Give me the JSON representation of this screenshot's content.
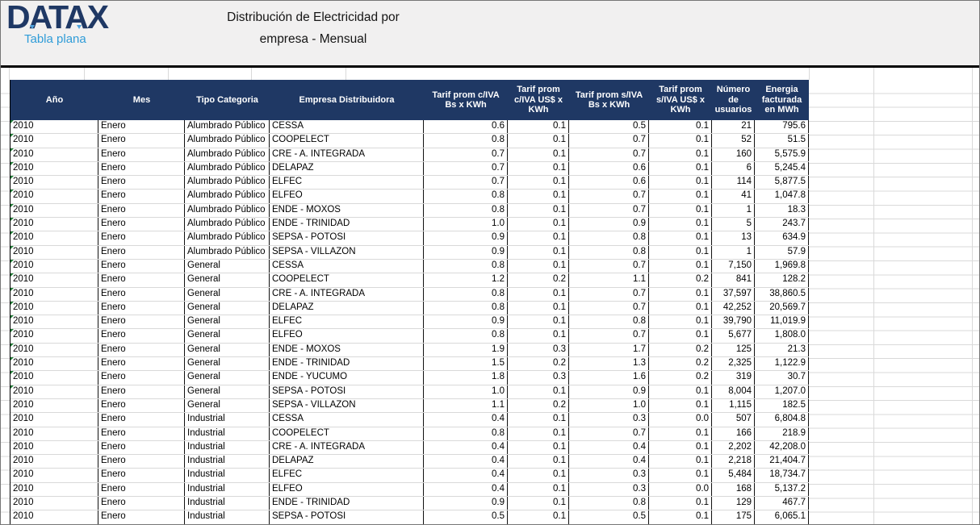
{
  "brand": {
    "logo_text": "DATAX",
    "tagline": "Tabla plana"
  },
  "title": {
    "line1": "Distribución de Electricidad por",
    "line2": "empresa - Mensual"
  },
  "colors": {
    "header_bg": "#1f3864",
    "header_text": "#ffffff",
    "logo_navy": "#1f3864",
    "tagline_blue": "#2f9cd8",
    "band_bg": "#f1f0f0",
    "gridline_gray": "#d9d9d9",
    "cell_border": "#000000",
    "error_indicator_green": "#1e7b34"
  },
  "table": {
    "columns": [
      {
        "id": "ano",
        "label": "Año"
      },
      {
        "id": "mes",
        "label": "Mes"
      },
      {
        "id": "tipo-categoria",
        "label": "Tipo Categoria"
      },
      {
        "id": "empresa-distribuidora",
        "label": "Empresa Distribuidora"
      },
      {
        "id": "tarif-prom-civa-bs",
        "label": "Tarif prom c/IVA Bs x KWh"
      },
      {
        "id": "tarif-prom-civa-usd",
        "label": "Tarif prom c/IVA US$ x KWh"
      },
      {
        "id": "tarif-prom-siva-bs",
        "label": "Tarif prom s/IVA Bs x KWh"
      },
      {
        "id": "tarif-prom-siva-usd",
        "label": "Tarif prom s/IVA US$ x KWh"
      },
      {
        "id": "numero-usuarios",
        "label": "Número de usuarios"
      },
      {
        "id": "energia-facturada",
        "label": "Energia facturada en MWh"
      }
    ],
    "rows": [
      {
        "error_indicator": true,
        "cells": [
          "2010",
          "Enero",
          "Alumbrado Público",
          "CESSA",
          "0.6",
          "0.1",
          "0.5",
          "0.1",
          "21",
          "795.6"
        ]
      },
      {
        "error_indicator": true,
        "cells": [
          "2010",
          "Enero",
          "Alumbrado Público",
          "COOPELECT",
          "0.8",
          "0.1",
          "0.7",
          "0.1",
          "52",
          "51.5"
        ]
      },
      {
        "error_indicator": true,
        "cells": [
          "2010",
          "Enero",
          "Alumbrado Público",
          "CRE - A. INTEGRADA",
          "0.7",
          "0.1",
          "0.7",
          "0.1",
          "160",
          "5,575.9"
        ]
      },
      {
        "error_indicator": true,
        "cells": [
          "2010",
          "Enero",
          "Alumbrado Público",
          "DELAPAZ",
          "0.7",
          "0.1",
          "0.6",
          "0.1",
          "6",
          "5,245.4"
        ]
      },
      {
        "error_indicator": true,
        "cells": [
          "2010",
          "Enero",
          "Alumbrado Público",
          "ELFEC",
          "0.7",
          "0.1",
          "0.6",
          "0.1",
          "114",
          "5,877.5"
        ]
      },
      {
        "error_indicator": true,
        "cells": [
          "2010",
          "Enero",
          "Alumbrado Público",
          "ELFEO",
          "0.8",
          "0.1",
          "0.7",
          "0.1",
          "41",
          "1,047.8"
        ]
      },
      {
        "error_indicator": true,
        "cells": [
          "2010",
          "Enero",
          "Alumbrado Público",
          "ENDE - MOXOS",
          "0.8",
          "0.1",
          "0.7",
          "0.1",
          "1",
          "18.3"
        ]
      },
      {
        "error_indicator": true,
        "cells": [
          "2010",
          "Enero",
          "Alumbrado Público",
          "ENDE - TRINIDAD",
          "1.0",
          "0.1",
          "0.9",
          "0.1",
          "5",
          "243.7"
        ]
      },
      {
        "error_indicator": true,
        "cells": [
          "2010",
          "Enero",
          "Alumbrado Público",
          "SEPSA - POTOSI",
          "0.9",
          "0.1",
          "0.8",
          "0.1",
          "13",
          "634.9"
        ]
      },
      {
        "error_indicator": true,
        "cells": [
          "2010",
          "Enero",
          "Alumbrado Público",
          "SEPSA - VILLAZON",
          "0.9",
          "0.1",
          "0.8",
          "0.1",
          "1",
          "57.9"
        ]
      },
      {
        "error_indicator": true,
        "cells": [
          "2010",
          "Enero",
          "General",
          "CESSA",
          "0.8",
          "0.1",
          "0.7",
          "0.1",
          "7,150",
          "1,969.8"
        ]
      },
      {
        "error_indicator": true,
        "cells": [
          "2010",
          "Enero",
          "General",
          "COOPELECT",
          "1.2",
          "0.2",
          "1.1",
          "0.2",
          "841",
          "128.2"
        ]
      },
      {
        "error_indicator": true,
        "cells": [
          "2010",
          "Enero",
          "General",
          "CRE - A. INTEGRADA",
          "0.8",
          "0.1",
          "0.7",
          "0.1",
          "37,597",
          "38,860.5"
        ]
      },
      {
        "error_indicator": true,
        "cells": [
          "2010",
          "Enero",
          "General",
          "DELAPAZ",
          "0.8",
          "0.1",
          "0.7",
          "0.1",
          "42,252",
          "20,569.7"
        ]
      },
      {
        "error_indicator": true,
        "cells": [
          "2010",
          "Enero",
          "General",
          "ELFEC",
          "0.9",
          "0.1",
          "0.8",
          "0.1",
          "39,790",
          "11,019.9"
        ]
      },
      {
        "error_indicator": true,
        "cells": [
          "2010",
          "Enero",
          "General",
          "ELFEO",
          "0.8",
          "0.1",
          "0.7",
          "0.1",
          "5,677",
          "1,808.0"
        ]
      },
      {
        "error_indicator": true,
        "cells": [
          "2010",
          "Enero",
          "General",
          "ENDE - MOXOS",
          "1.9",
          "0.3",
          "1.7",
          "0.2",
          "125",
          "21.3"
        ]
      },
      {
        "error_indicator": true,
        "cells": [
          "2010",
          "Enero",
          "General",
          "ENDE - TRINIDAD",
          "1.5",
          "0.2",
          "1.3",
          "0.2",
          "2,325",
          "1,122.9"
        ]
      },
      {
        "error_indicator": true,
        "cells": [
          "2010",
          "Enero",
          "General",
          "ENDE - YUCUMO",
          "1.8",
          "0.3",
          "1.6",
          "0.2",
          "319",
          "30.7"
        ]
      },
      {
        "error_indicator": true,
        "cells": [
          "2010",
          "Enero",
          "General",
          "SEPSA - POTOSI",
          "1.0",
          "0.1",
          "0.9",
          "0.1",
          "8,004",
          "1,207.0"
        ]
      },
      {
        "error_indicator": false,
        "cells": [
          "2010",
          "Enero",
          "General",
          "SEPSA - VILLAZON",
          "1.1",
          "0.2",
          "1.0",
          "0.1",
          "1,115",
          "182.5"
        ]
      },
      {
        "error_indicator": false,
        "cells": [
          "2010",
          "Enero",
          "Industrial",
          "CESSA",
          "0.4",
          "0.1",
          "0.3",
          "0.0",
          "507",
          "6,804.8"
        ]
      },
      {
        "error_indicator": false,
        "cells": [
          "2010",
          "Enero",
          "Industrial",
          "COOPELECT",
          "0.8",
          "0.1",
          "0.7",
          "0.1",
          "166",
          "218.9"
        ]
      },
      {
        "error_indicator": false,
        "cells": [
          "2010",
          "Enero",
          "Industrial",
          "CRE - A. INTEGRADA",
          "0.4",
          "0.1",
          "0.4",
          "0.1",
          "2,202",
          "42,208.0"
        ]
      },
      {
        "error_indicator": false,
        "cells": [
          "2010",
          "Enero",
          "Industrial",
          "DELAPAZ",
          "0.4",
          "0.1",
          "0.4",
          "0.1",
          "2,218",
          "21,404.7"
        ]
      },
      {
        "error_indicator": false,
        "cells": [
          "2010",
          "Enero",
          "Industrial",
          "ELFEC",
          "0.4",
          "0.1",
          "0.3",
          "0.1",
          "5,484",
          "18,734.7"
        ]
      },
      {
        "error_indicator": false,
        "cells": [
          "2010",
          "Enero",
          "Industrial",
          "ELFEO",
          "0.4",
          "0.1",
          "0.3",
          "0.0",
          "168",
          "5,137.2"
        ]
      },
      {
        "error_indicator": false,
        "cells": [
          "2010",
          "Enero",
          "Industrial",
          "ENDE - TRINIDAD",
          "0.9",
          "0.1",
          "0.8",
          "0.1",
          "129",
          "467.7"
        ]
      },
      {
        "error_indicator": false,
        "cells": [
          "2010",
          "Enero",
          "Industrial",
          "SEPSA - POTOSI",
          "0.5",
          "0.1",
          "0.5",
          "0.1",
          "175",
          "6,065.1"
        ]
      }
    ]
  }
}
